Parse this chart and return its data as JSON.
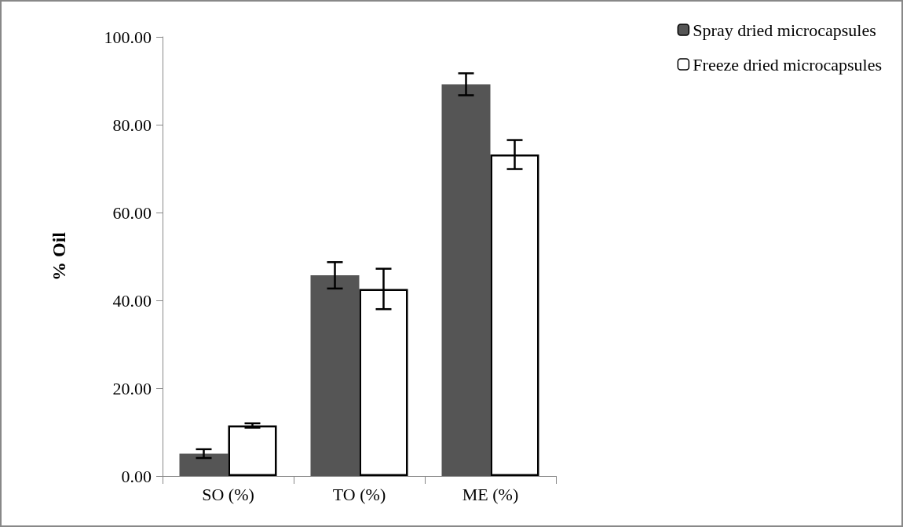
{
  "chart_data": {
    "type": "bar",
    "ylabel": "% Oil",
    "categories": [
      "SO (%)",
      "TO (%)",
      "ME (%)"
    ],
    "series": [
      {
        "name": "Spray dried microcapsules",
        "color": "#555555",
        "values": [
          5.1,
          45.7,
          89.2
        ],
        "errors": [
          1,
          3,
          2.5
        ]
      },
      {
        "name": "Freeze dried microcapsules",
        "color": "#ffffff",
        "values": [
          11.5,
          42.6,
          73.2
        ],
        "errors": [
          0.5,
          4.6,
          3.3
        ]
      }
    ],
    "ylim": [
      0,
      100
    ],
    "yticks": [
      {
        "value": 0,
        "label": "0.00"
      },
      {
        "value": 20,
        "label": "20.00"
      },
      {
        "value": 40,
        "label": "40.00"
      },
      {
        "value": 60,
        "label": "60.00"
      },
      {
        "value": 80,
        "label": "80.00"
      },
      {
        "value": 100,
        "label": "100.00"
      }
    ],
    "grid": false,
    "legend": "top right"
  }
}
